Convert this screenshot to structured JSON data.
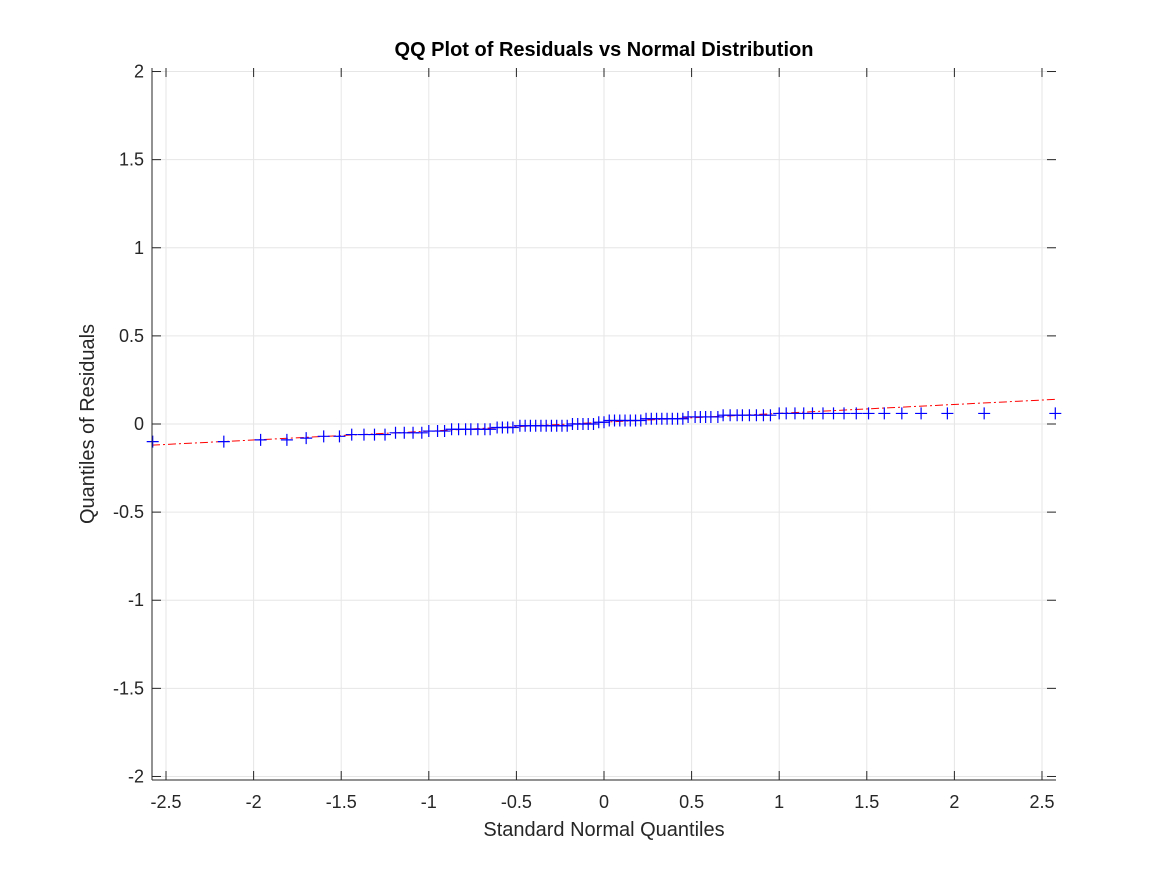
{
  "chart_data": {
    "type": "scatter",
    "title": "QQ Plot of Residuals vs Normal Distribution",
    "xlabel": "Standard Normal Quantiles",
    "ylabel": "Quantiles of Residuals",
    "xlim": [
      -2.58,
      2.58
    ],
    "ylim": [
      -2.02,
      2.02
    ],
    "grid": true,
    "legend": "none",
    "xticks": [
      -2.5,
      -2,
      -1.5,
      -1,
      -0.5,
      0,
      0.5,
      1,
      1.5,
      2,
      2.5
    ],
    "xtick_labels": [
      "-2.5",
      "-2",
      "-1.5",
      "-1",
      "-0.5",
      "0",
      "0.5",
      "1",
      "1.5",
      "2",
      "2.5"
    ],
    "yticks": [
      -2,
      -1.5,
      -1,
      -0.5,
      0,
      0.5,
      1,
      1.5,
      2
    ],
    "ytick_labels": [
      "-2",
      "-1.5",
      "-1",
      "-0.5",
      "0",
      "0.5",
      "1",
      "1.5",
      "2"
    ],
    "colors": {
      "points": "#0000ff",
      "reference_line": "#ff0000",
      "grid": "#e6e6e6",
      "axis": "#262626"
    },
    "reference_line": {
      "x": [
        -2.58,
        2.58
      ],
      "y": [
        -0.12,
        0.14
      ],
      "style": "dash-dot"
    },
    "series": [
      {
        "x": [
          -2.576,
          -2.17,
          -1.96,
          -1.81,
          -1.7,
          -1.6,
          -1.51,
          -1.44,
          -1.37,
          -1.31,
          -1.25,
          -1.19,
          -1.14,
          -1.09,
          -1.04,
          -1.0,
          -0.95,
          -0.91,
          -0.87,
          -0.83,
          -0.79,
          -0.76,
          -0.72,
          -0.68,
          -0.65,
          -0.61,
          -0.58,
          -0.55,
          -0.52,
          -0.48,
          -0.45,
          -0.42,
          -0.39,
          -0.36,
          -0.33,
          -0.3,
          -0.27,
          -0.24,
          -0.21,
          -0.18,
          -0.15,
          -0.12,
          -0.09,
          -0.06,
          -0.03,
          0.0,
          0.03,
          0.06,
          0.09,
          0.12,
          0.15,
          0.18,
          0.21,
          0.24,
          0.27,
          0.3,
          0.33,
          0.36,
          0.39,
          0.42,
          0.45,
          0.48,
          0.52,
          0.55,
          0.58,
          0.61,
          0.65,
          0.68,
          0.72,
          0.76,
          0.79,
          0.83,
          0.87,
          0.91,
          0.95,
          1.0,
          1.04,
          1.09,
          1.14,
          1.19,
          1.25,
          1.31,
          1.37,
          1.44,
          1.51,
          1.6,
          1.7,
          1.81,
          1.96,
          2.17,
          2.576
        ],
        "y": [
          -0.1,
          -0.1,
          -0.09,
          -0.09,
          -0.08,
          -0.07,
          -0.07,
          -0.06,
          -0.06,
          -0.06,
          -0.06,
          -0.05,
          -0.05,
          -0.05,
          -0.05,
          -0.04,
          -0.04,
          -0.04,
          -0.03,
          -0.03,
          -0.03,
          -0.03,
          -0.03,
          -0.03,
          -0.03,
          -0.02,
          -0.02,
          -0.02,
          -0.02,
          -0.01,
          -0.01,
          -0.01,
          -0.01,
          -0.01,
          -0.01,
          -0.01,
          -0.01,
          -0.01,
          -0.01,
          0.0,
          0.0,
          0.0,
          0.0,
          0.0,
          0.01,
          0.01,
          0.02,
          0.02,
          0.02,
          0.02,
          0.02,
          0.02,
          0.02,
          0.03,
          0.03,
          0.03,
          0.03,
          0.03,
          0.03,
          0.03,
          0.03,
          0.04,
          0.04,
          0.04,
          0.04,
          0.04,
          0.04,
          0.05,
          0.05,
          0.05,
          0.05,
          0.05,
          0.05,
          0.05,
          0.05,
          0.06,
          0.06,
          0.06,
          0.06,
          0.06,
          0.06,
          0.06,
          0.06,
          0.06,
          0.06,
          0.06,
          0.06,
          0.06,
          0.06,
          0.06,
          0.06
        ]
      }
    ]
  }
}
